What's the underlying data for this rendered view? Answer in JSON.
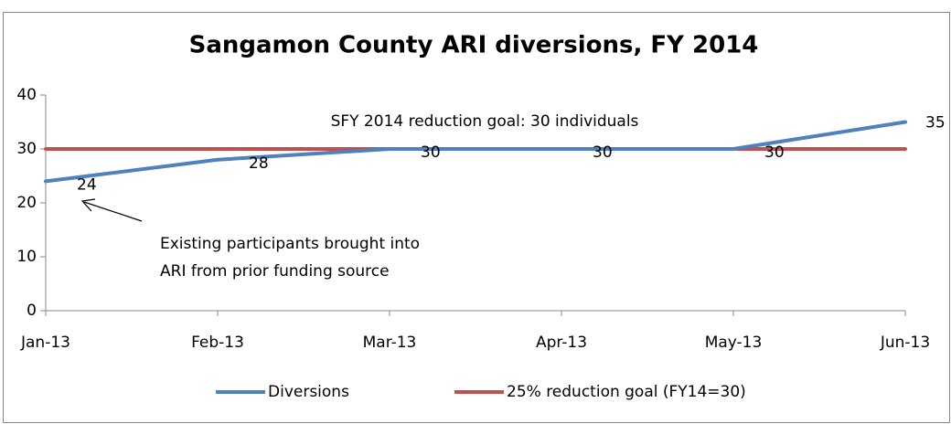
{
  "chart_data": {
    "type": "line",
    "title": "Sangamon County ARI diversions, FY 2014",
    "categories": [
      "Jan-13",
      "Feb-13",
      "Mar-13",
      "Apr-13",
      "May-13",
      "Jun-13"
    ],
    "series": [
      {
        "name": "Diversions",
        "color": "#4f81bd",
        "values": [
          24,
          28,
          30,
          30,
          30,
          35
        ],
        "data_labels": true
      },
      {
        "name": "25% reduction goal (FY14=30)",
        "color": "#c0504d",
        "values": [
          30,
          30,
          30,
          30,
          30,
          30
        ],
        "data_labels": false
      }
    ],
    "ylim": [
      0,
      40
    ],
    "yticks": [
      0,
      10,
      20,
      30,
      40
    ],
    "grid": false,
    "legend": "bottom",
    "annotations": [
      {
        "lines": [
          "SFY 2014 reduction goal: 30 individuals"
        ]
      },
      {
        "lines": [
          "Existing participants brought into",
          "ARI from prior funding source"
        ]
      }
    ]
  }
}
